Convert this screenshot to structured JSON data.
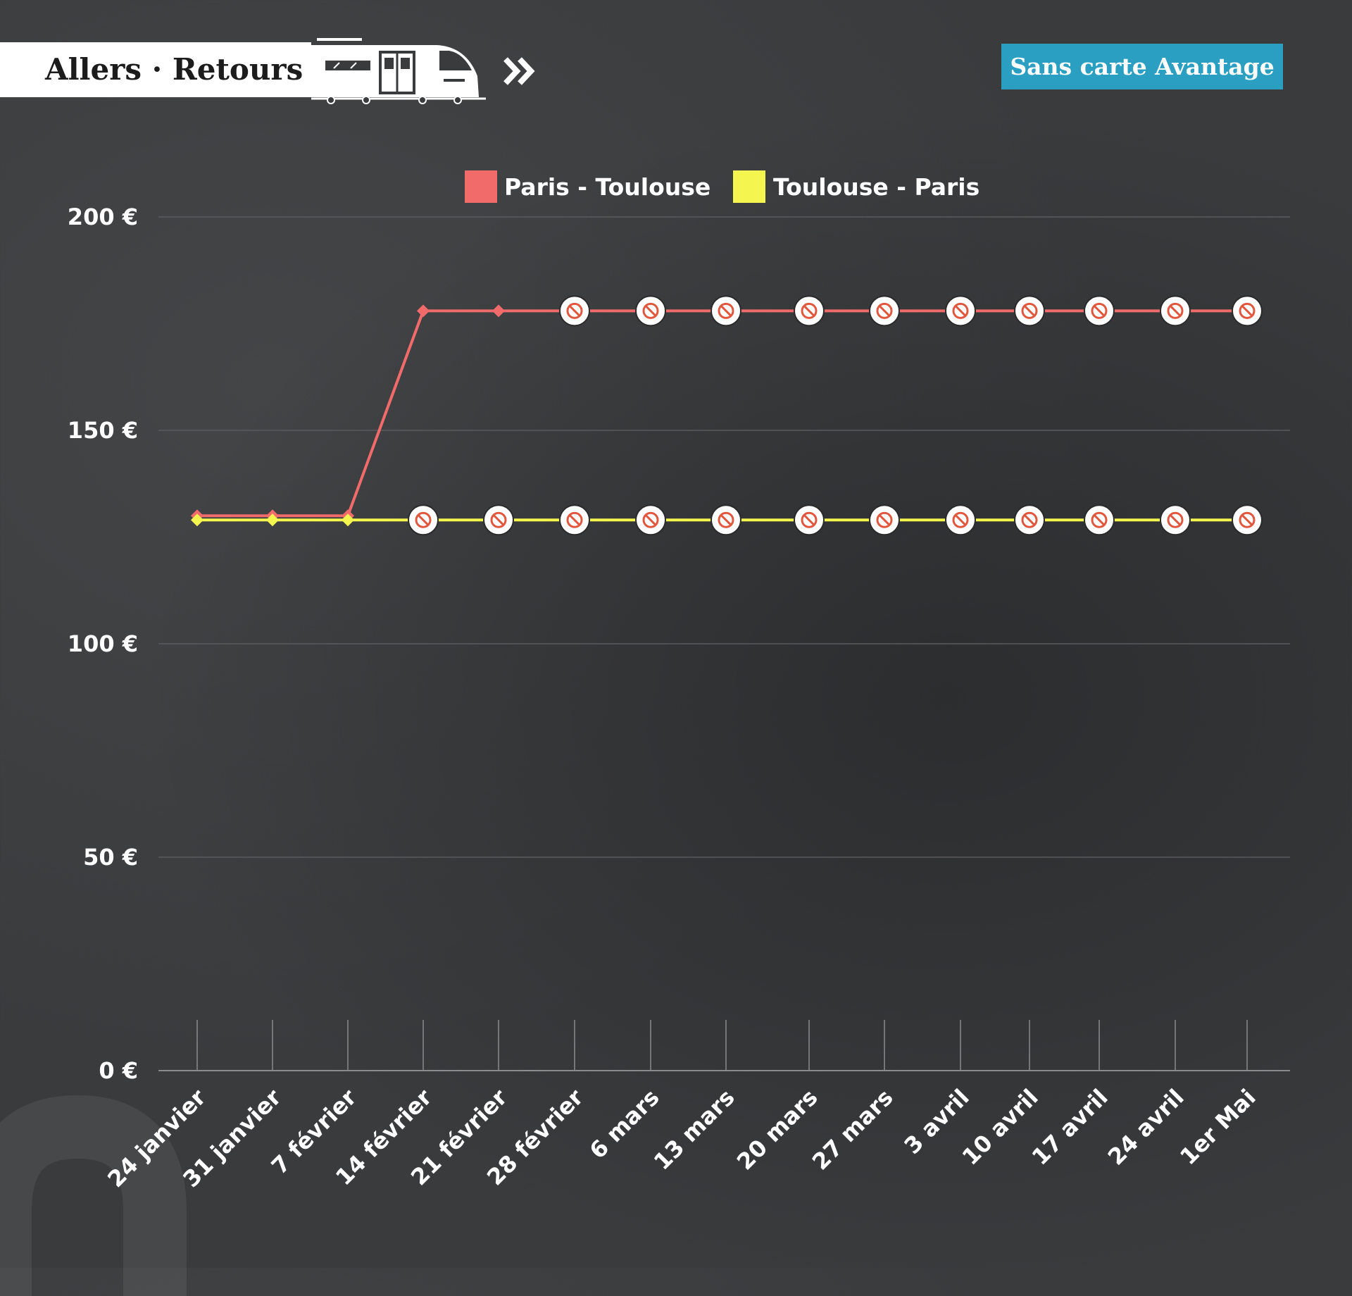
{
  "header": {
    "title": "Allers · Retours",
    "badge": "Sans carte Avantage"
  },
  "icons": {
    "train": "train-icon",
    "forward": "double-chevron-icon",
    "unavailable": "no-entry-icon"
  },
  "chart_data": {
    "type": "line",
    "categories": [
      "24 janvier",
      "31 janvier",
      "7 février",
      "14 février",
      "21 février",
      "28 février",
      "6 mars",
      "13 mars",
      "20 mars",
      "27 mars",
      "3 avril",
      "10 avril",
      "17 avril",
      "24 avril",
      "1er Mai"
    ],
    "yticks": [
      "0 €",
      "50 €",
      "100 €",
      "150 €",
      "200 €"
    ],
    "ylim": [
      0,
      200
    ],
    "legend_position": "top",
    "grid": true,
    "series": [
      {
        "name": "Paris - Toulouse",
        "color": "#f26b6b",
        "values": [
          130,
          130,
          130,
          178,
          178,
          178,
          178,
          178,
          178,
          178,
          178,
          178,
          178,
          178,
          178
        ],
        "unavailable": [
          false,
          false,
          false,
          false,
          false,
          true,
          true,
          true,
          true,
          true,
          true,
          true,
          true,
          true,
          true
        ]
      },
      {
        "name": "Toulouse - Paris",
        "color": "#f5f550",
        "values": [
          129,
          129,
          129,
          129,
          129,
          129,
          129,
          129,
          129,
          129,
          129,
          129,
          129,
          129,
          129
        ],
        "unavailable": [
          false,
          false,
          false,
          true,
          true,
          true,
          true,
          true,
          true,
          true,
          true,
          true,
          true,
          true,
          true
        ]
      }
    ]
  }
}
